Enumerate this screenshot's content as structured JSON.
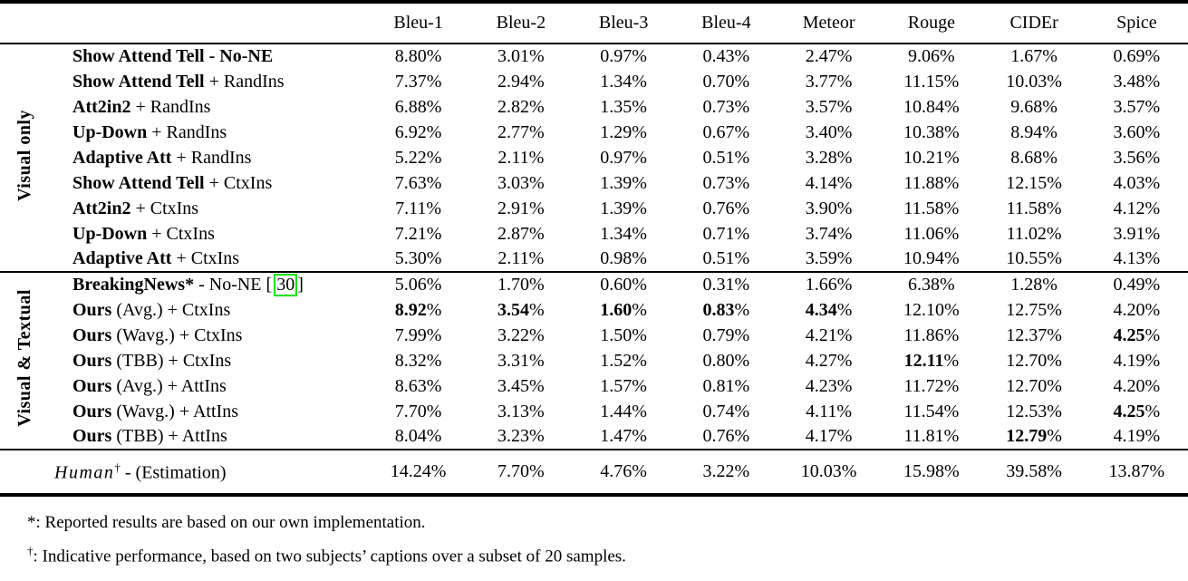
{
  "colors": {
    "citation_box_border": "#00e400"
  },
  "table": {
    "metric_headers": [
      "Bleu-1",
      "Bleu-2",
      "Bleu-3",
      "Bleu-4",
      "Meteor",
      "Rouge",
      "CIDEr",
      "Spice"
    ],
    "percent_sign": "%",
    "groups": [
      {
        "label": "Visual only",
        "rows": [
          {
            "bold": "Show Attend Tell - No-NE",
            "rest": "",
            "values": [
              "8.80",
              "3.01",
              "0.97",
              "0.43",
              "2.47",
              "9.06",
              "1.67",
              "0.69"
            ],
            "bold_cols": []
          },
          {
            "bold": "Show Attend Tell",
            "rest": " + RandIns",
            "values": [
              "7.37",
              "2.94",
              "1.34",
              "0.70",
              "3.77",
              "11.15",
              "10.03",
              "3.48"
            ],
            "bold_cols": []
          },
          {
            "bold": "Att2in2",
            "rest": " + RandIns",
            "values": [
              "6.88",
              "2.82",
              "1.35",
              "0.73",
              "3.57",
              "10.84",
              "9.68",
              "3.57"
            ],
            "bold_cols": []
          },
          {
            "bold": "Up-Down",
            "rest": " + RandIns",
            "values": [
              "6.92",
              "2.77",
              "1.29",
              "0.67",
              "3.40",
              "10.38",
              "8.94",
              "3.60"
            ],
            "bold_cols": []
          },
          {
            "bold": "Adaptive Att",
            "rest": " + RandIns",
            "values": [
              "5.22",
              "2.11",
              "0.97",
              "0.51",
              "3.28",
              "10.21",
              "8.68",
              "3.56"
            ],
            "bold_cols": []
          },
          {
            "bold": "Show Attend Tell",
            "rest": " + CtxIns",
            "values": [
              "7.63",
              "3.03",
              "1.39",
              "0.73",
              "4.14",
              "11.88",
              "12.15",
              "4.03"
            ],
            "bold_cols": []
          },
          {
            "bold": "Att2in2",
            "rest": " + CtxIns",
            "values": [
              "7.11",
              "2.91",
              "1.39",
              "0.76",
              "3.90",
              "11.58",
              "11.58",
              "4.12"
            ],
            "bold_cols": []
          },
          {
            "bold": "Up-Down",
            "rest": " + CtxIns",
            "values": [
              "7.21",
              "2.87",
              "1.34",
              "0.71",
              "3.74",
              "11.06",
              "11.02",
              "3.91"
            ],
            "bold_cols": []
          },
          {
            "bold": "Adaptive Att",
            "rest": " + CtxIns",
            "values": [
              "5.30",
              "2.11",
              "0.98",
              "0.51",
              "3.59",
              "10.94",
              "10.55",
              "4.13"
            ],
            "bold_cols": []
          }
        ]
      },
      {
        "label": "Visual & Textual",
        "rows": [
          {
            "bold": "BreakingNews*",
            "rest": " - No-NE ",
            "cite": "30",
            "values": [
              "5.06",
              "1.70",
              "0.60",
              "0.31",
              "1.66",
              "6.38",
              "1.28",
              "0.49"
            ],
            "bold_cols": []
          },
          {
            "bold": "Ours",
            "rest": " (Avg.) + CtxIns",
            "values": [
              "8.92",
              "3.54",
              "1.60",
              "0.83",
              "4.34",
              "12.10",
              "12.75",
              "4.20"
            ],
            "bold_cols": [
              0,
              1,
              2,
              3,
              4
            ]
          },
          {
            "bold": "Ours",
            "rest": " (Wavg.) + CtxIns",
            "values": [
              "7.99",
              "3.22",
              "1.50",
              "0.79",
              "4.21",
              "11.86",
              "12.37",
              "4.25"
            ],
            "bold_cols": [
              7
            ]
          },
          {
            "bold": "Ours",
            "rest": " (TBB) + CtxIns",
            "values": [
              "8.32",
              "3.31",
              "1.52",
              "0.80",
              "4.27",
              "12.11",
              "12.70",
              "4.19"
            ],
            "bold_cols": [
              5
            ]
          },
          {
            "bold": "Ours",
            "rest": " (Avg.) + AttIns",
            "values": [
              "8.63",
              "3.45",
              "1.57",
              "0.81",
              "4.23",
              "11.72",
              "12.70",
              "4.20"
            ],
            "bold_cols": []
          },
          {
            "bold": "Ours",
            "rest": " (Wavg.) + AttIns",
            "values": [
              "7.70",
              "3.13",
              "1.44",
              "0.74",
              "4.11",
              "11.54",
              "12.53",
              "4.25"
            ],
            "bold_cols": [
              7
            ]
          },
          {
            "bold": "Ours",
            "rest": " (TBB) + AttIns",
            "values": [
              "8.04",
              "3.23",
              "1.47",
              "0.76",
              "4.17",
              "11.81",
              "12.79",
              "4.19"
            ],
            "bold_cols": [
              6
            ]
          }
        ]
      }
    ],
    "human_row": {
      "name_italic": "Human",
      "marker": "†",
      "rest": " - (Estimation)",
      "values": [
        "14.24",
        "7.70",
        "4.76",
        "3.22",
        "10.03",
        "15.98",
        "39.58",
        "13.87"
      ]
    }
  },
  "footnotes": {
    "separator": ": ",
    "items": [
      {
        "marker": "*",
        "text": "Reported results are based on our own implementation."
      },
      {
        "marker": "†",
        "text": "Indicative performance, based on two subjects’ captions over a subset of 20 samples."
      }
    ]
  }
}
